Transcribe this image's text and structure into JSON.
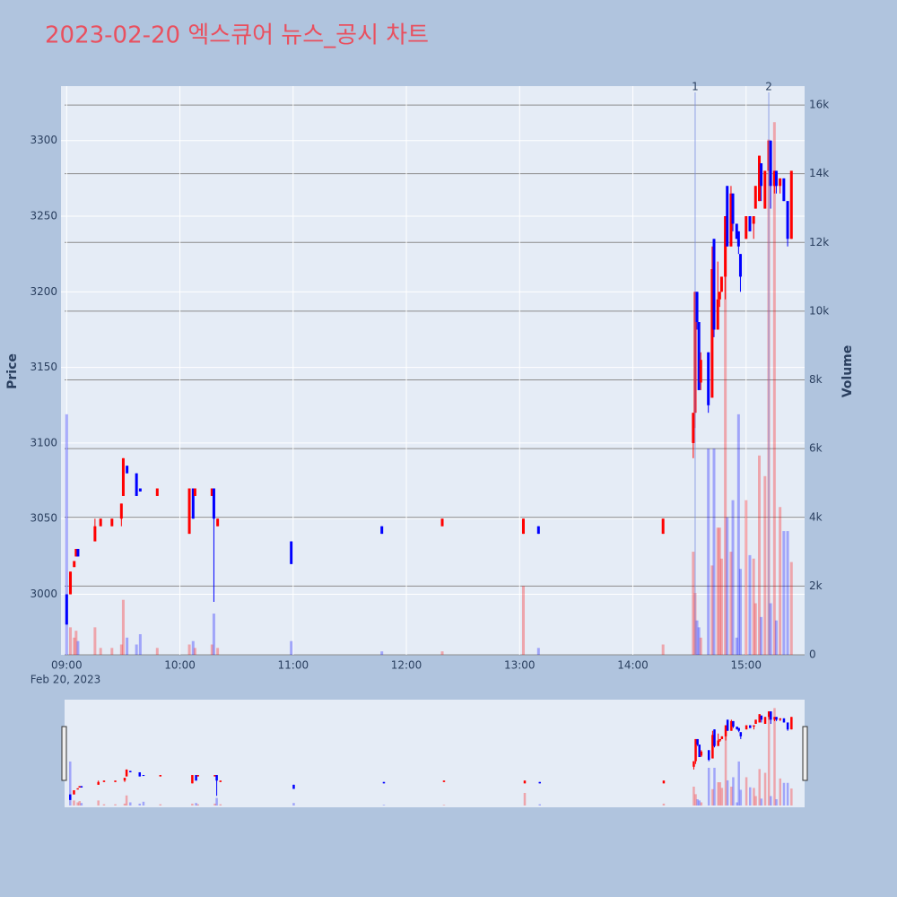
{
  "chart_data": {
    "type": "candlestick",
    "title": "2023-02-20 엑스큐어 뉴스_공시 차트",
    "y_label": "Price",
    "y2_label": "Volume",
    "x_date_label": "Feb 20, 2023",
    "increasing_color": "#ff0000",
    "decreasing_color": "#0000ff",
    "volume_opacity": 0.3,
    "grid": true,
    "rangeslider": true,
    "x": [
      "2023-02-20 09:00",
      "2023-02-20 09:02",
      "2023-02-20 09:04",
      "2023-02-20 09:05",
      "2023-02-20 09:06",
      "2023-02-20 09:15",
      "2023-02-20 09:18",
      "2023-02-20 09:24",
      "2023-02-20 09:29",
      "2023-02-20 09:30",
      "2023-02-20 09:32",
      "2023-02-20 09:37",
      "2023-02-20 09:39",
      "2023-02-20 09:48",
      "2023-02-20 10:05",
      "2023-02-20 10:07",
      "2023-02-20 10:08",
      "2023-02-20 10:17",
      "2023-02-20 10:18",
      "2023-02-20 10:20",
      "2023-02-20 10:59",
      "2023-02-20 11:47",
      "2023-02-20 12:19",
      "2023-02-20 13:02",
      "2023-02-20 13:10",
      "2023-02-20 14:16",
      "2023-02-20 14:32",
      "2023-02-20 14:33",
      "2023-02-20 14:34",
      "2023-02-20 14:35",
      "2023-02-20 14:36",
      "2023-02-20 14:40",
      "2023-02-20 14:42",
      "2023-02-20 14:43",
      "2023-02-20 14:45",
      "2023-02-20 14:46",
      "2023-02-20 14:47",
      "2023-02-20 14:49",
      "2023-02-20 14:50",
      "2023-02-20 14:52",
      "2023-02-20 14:53",
      "2023-02-20 14:55",
      "2023-02-20 14:56",
      "2023-02-20 14:57",
      "2023-02-20 15:00",
      "2023-02-20 15:02",
      "2023-02-20 15:04",
      "2023-02-20 15:05",
      "2023-02-20 15:07",
      "2023-02-20 15:08",
      "2023-02-20 15:10",
      "2023-02-20 15:12",
      "2023-02-20 15:13",
      "2023-02-20 15:15",
      "2023-02-20 15:16",
      "2023-02-20 15:18",
      "2023-02-20 15:20",
      "2023-02-20 15:22",
      "2023-02-20 15:24"
    ],
    "open": [
      3000,
      3000,
      3018,
      3025,
      3030,
      3035,
      3045,
      3045,
      3050,
      3065,
      3085,
      3080,
      3070,
      3065,
      3040,
      3070,
      3065,
      3065,
      3070,
      3045,
      3035,
      3045,
      3045,
      3040,
      3045,
      3040,
      3100,
      3120,
      3200,
      3180,
      3140,
      3160,
      3130,
      3235,
      3175,
      3195,
      3200,
      3210,
      3270,
      3230,
      3265,
      3245,
      3240,
      3225,
      3235,
      3250,
      3245,
      3255,
      3260,
      3285,
      3255,
      3280,
      3300,
      3270,
      3280,
      3270,
      3275,
      3260,
      3235
    ],
    "high": [
      3000,
      3015,
      3022,
      3030,
      3030,
      3050,
      3050,
      3050,
      3060,
      3090,
      3085,
      3080,
      3070,
      3070,
      3070,
      3070,
      3070,
      3070,
      3070,
      3050,
      3035,
      3045,
      3050,
      3050,
      3045,
      3050,
      3120,
      3200,
      3200,
      3180,
      3160,
      3160,
      3230,
      3235,
      3220,
      3200,
      3210,
      3250,
      3270,
      3270,
      3265,
      3245,
      3240,
      3225,
      3250,
      3250,
      3250,
      3270,
      3290,
      3285,
      3280,
      3300,
      3300,
      3280,
      3280,
      3275,
      3275,
      3260,
      3280
    ],
    "low": [
      2980,
      3000,
      3018,
      3025,
      3025,
      3035,
      3045,
      3045,
      3045,
      3065,
      3080,
      3065,
      3068,
      3065,
      3040,
      3050,
      3065,
      3065,
      2995,
      3045,
      3020,
      3040,
      3045,
      3040,
      3040,
      3040,
      3090,
      3110,
      3175,
      3135,
      3135,
      3120,
      3130,
      3170,
      3175,
      3190,
      3200,
      3195,
      3230,
      3230,
      3240,
      3235,
      3225,
      3200,
      3235,
      3240,
      3235,
      3255,
      3260,
      3260,
      3255,
      3270,
      3255,
      3265,
      3265,
      3265,
      3260,
      3230,
      3235
    ],
    "close": [
      2980,
      3015,
      3022,
      3030,
      3025,
      3045,
      3050,
      3050,
      3060,
      3090,
      3080,
      3065,
      3068,
      3070,
      3070,
      3050,
      3070,
      3070,
      3050,
      3050,
      3020,
      3040,
      3050,
      3050,
      3040,
      3050,
      3120,
      3200,
      3180,
      3135,
      3155,
      3125,
      3215,
      3175,
      3195,
      3200,
      3210,
      3250,
      3230,
      3265,
      3245,
      3235,
      3230,
      3210,
      3250,
      3240,
      3250,
      3270,
      3290,
      3270,
      3280,
      3300,
      3270,
      3280,
      3270,
      3275,
      3260,
      3235,
      3280
    ],
    "volume": [
      7000,
      800,
      500,
      700,
      400,
      800,
      200,
      200,
      300,
      1600,
      500,
      300,
      600,
      200,
      300,
      400,
      200,
      300,
      1200,
      200,
      400,
      100,
      100,
      2000,
      200,
      300,
      3000,
      1800,
      1000,
      800,
      500,
      6000,
      2600,
      6000,
      3700,
      3700,
      2800,
      12300,
      4000,
      3000,
      4500,
      500,
      7000,
      2500,
      4500,
      2900,
      2800,
      1500,
      5800,
      1100,
      5200,
      15000,
      1500,
      15500,
      1000,
      4300,
      3600,
      3600,
      2700
    ],
    "xlim": [
      "2023-02-20 08:57",
      "2023-02-20 15:31"
    ],
    "xticks": [
      {
        "value": "2023-02-20 09:00",
        "label": "09:00"
      },
      {
        "value": "2023-02-20 10:00",
        "label": "10:00"
      },
      {
        "value": "2023-02-20 11:00",
        "label": "11:00"
      },
      {
        "value": "2023-02-20 12:00",
        "label": "12:00"
      },
      {
        "value": "2023-02-20 13:00",
        "label": "13:00"
      },
      {
        "value": "2023-02-20 14:00",
        "label": "14:00"
      },
      {
        "value": "2023-02-20 15:00",
        "label": "15:00"
      }
    ],
    "ylim": [
      2960,
      3336
    ],
    "yticks": [
      3000,
      3050,
      3100,
      3150,
      3200,
      3250,
      3300
    ],
    "y2lim": [
      0,
      16550
    ],
    "y2ticks": [
      0,
      {
        "value": 2000,
        "label": "2k"
      },
      {
        "value": 4000,
        "label": "4k"
      },
      {
        "value": 6000,
        "label": "6k"
      },
      {
        "value": 8000,
        "label": "8k"
      },
      {
        "value": 10000,
        "label": "10k"
      },
      {
        "value": 12000,
        "label": "12k"
      },
      {
        "value": 14000,
        "label": "14k"
      },
      {
        "value": 16000,
        "label": "16k"
      }
    ],
    "annotations": [
      {
        "x": "2023-02-20 14:33",
        "text": "1"
      },
      {
        "x": "2023-02-20 15:12",
        "text": "2"
      }
    ]
  }
}
